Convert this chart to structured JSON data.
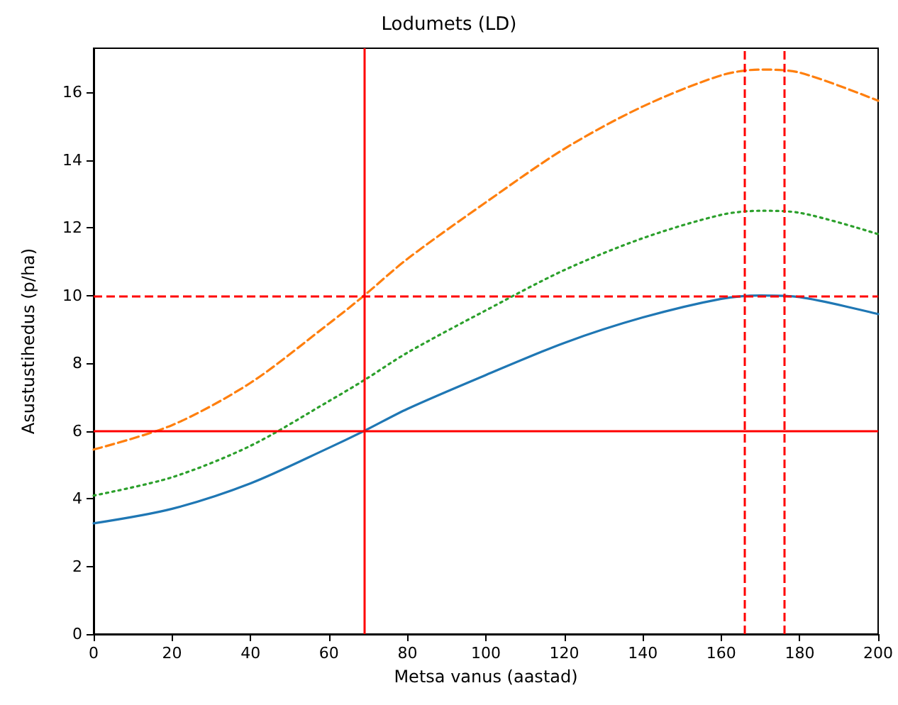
{
  "chart_data": {
    "type": "line",
    "title": "Lodumets (LD)",
    "xlabel": "Metsa vanus (aastad)",
    "ylabel": "Asustustihedus (p/ha)",
    "x": [
      0,
      20,
      40,
      60,
      69,
      80,
      100,
      120,
      140,
      160,
      170,
      180,
      200
    ],
    "series": [
      {
        "color": "#1f77b4",
        "line_style": "solid",
        "values": [
          3.27,
          3.7,
          4.45,
          5.5,
          6.0,
          6.65,
          7.65,
          8.6,
          9.35,
          9.9,
          10.0,
          9.95,
          9.45
        ]
      },
      {
        "color": "#ff7f0e",
        "line_style": "dashed",
        "values": [
          5.45,
          6.17,
          7.42,
          9.17,
          10.0,
          11.08,
          12.75,
          14.33,
          15.58,
          16.5,
          16.67,
          16.58,
          15.75
        ]
      },
      {
        "color": "#2ca02c",
        "line_style": "dotted",
        "values": [
          4.09,
          4.63,
          5.56,
          6.88,
          7.5,
          8.31,
          9.56,
          10.75,
          11.69,
          12.38,
          12.5,
          12.44,
          11.81
        ]
      }
    ],
    "xlim": [
      0,
      200
    ],
    "xticks": [
      0,
      20,
      40,
      60,
      80,
      100,
      120,
      140,
      160,
      180,
      200
    ],
    "ylim": [
      0,
      17.3
    ],
    "yticks": [
      0,
      2,
      4,
      6,
      8,
      10,
      12,
      14,
      16
    ],
    "ref_lines": [
      {
        "axis": "x",
        "value": 69,
        "color": "#ff0000",
        "line_style": "solid"
      },
      {
        "axis": "x",
        "value": 166,
        "color": "#ff0000",
        "line_style": "dashed"
      },
      {
        "axis": "x",
        "value": 176,
        "color": "#ff0000",
        "line_style": "dashed"
      },
      {
        "axis": "y",
        "value": 6,
        "color": "#ff0000",
        "line_style": "solid"
      },
      {
        "axis": "y",
        "value": 10,
        "color": "#ff0000",
        "line_style": "dashed"
      }
    ],
    "grid": false,
    "marker": "none"
  }
}
